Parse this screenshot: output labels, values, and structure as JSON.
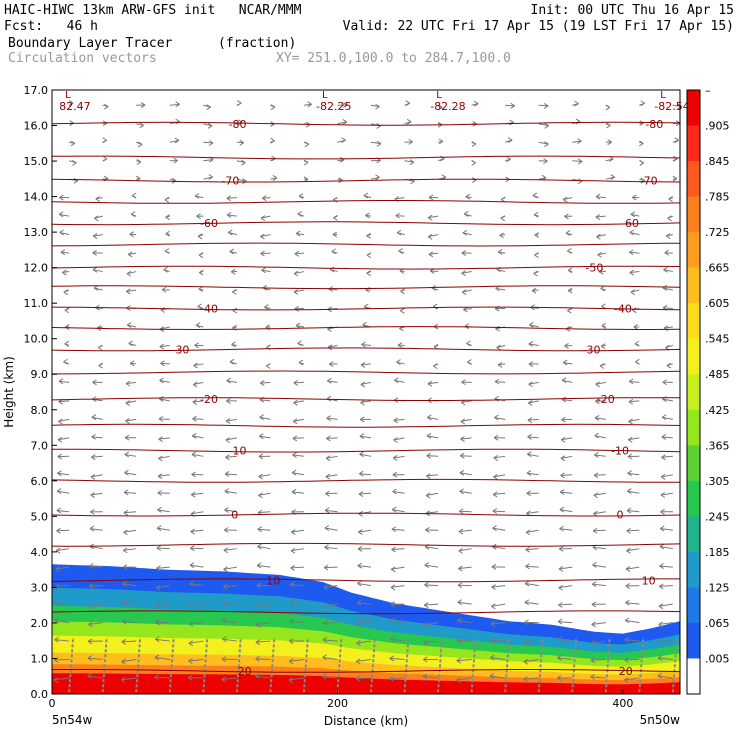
{
  "header": {
    "line1_left": "HAIC-HIWC 13km ARW-GFS init   NCAR/MMM",
    "line1_right": "Init: 00 UTC Thu 16 Apr 15",
    "line2_left": "Fcst:   46 h",
    "line2_right": "Valid: 22 UTC Fri 17 Apr 15 (19 LST Fri 17 Apr 15)",
    "field_name": "Boundary Layer Tracer",
    "field_units": "(fraction)",
    "overlay_name": "Circulation vectors",
    "xsec_info": "XY= 251.0,100.0 to 284.7,100.0"
  },
  "chart_data": {
    "type": "cross-section",
    "title": "Boundary Layer Tracer",
    "units": "(fraction)",
    "xlabel": "Distance (km)",
    "ylabel": "Height (km)",
    "xlim": [
      0,
      440
    ],
    "ylim": [
      0,
      17
    ],
    "x_ticks": [
      0,
      200,
      400
    ],
    "x_tick_labels": [
      "0",
      "200",
      "400"
    ],
    "y_ticks": [
      0,
      1,
      2,
      3,
      4,
      5,
      6,
      7,
      8,
      9,
      10,
      11,
      12,
      13,
      14,
      15,
      16,
      17
    ],
    "y_tick_labels": [
      "0.0",
      "1.0",
      "2.0",
      "3.0",
      "4.0",
      "5.0",
      "6.0",
      "7.0",
      "8.0",
      "9.0",
      "10.0",
      "11.0",
      "12.0",
      "13.0",
      "14.0",
      "15.0",
      "16.0",
      "17.0"
    ],
    "x_end_labels": {
      "left": "5n54w",
      "right": "5n50w"
    },
    "colorbar": {
      "labels": [
        "–",
        ".905",
        ".845",
        ".785",
        ".725",
        ".665",
        ".605",
        ".545",
        ".485",
        ".425",
        ".365",
        ".305",
        ".245",
        ".185",
        ".125",
        ".065",
        ".005"
      ],
      "colors": [
        "#ee0000",
        "#ff2a1a",
        "#ff5a1e",
        "#ff7e1e",
        "#ff9e1e",
        "#ffbe1e",
        "#ffdc1e",
        "#f4f01e",
        "#c8f01e",
        "#96e61e",
        "#5ad232",
        "#28c850",
        "#1eb48c",
        "#1e9bc8",
        "#1e7ae6",
        "#1e5af0",
        "#ffffff"
      ]
    },
    "tracer_profile": {
      "x": [
        0,
        40,
        80,
        120,
        160,
        190,
        210,
        240,
        280,
        320,
        350,
        380,
        400,
        420,
        440
      ],
      "top_km": [
        3.65,
        3.6,
        3.5,
        3.45,
        3.35,
        3.15,
        2.85,
        2.55,
        2.3,
        2.05,
        1.95,
        1.75,
        1.7,
        1.85,
        2.05
      ],
      "layers": [
        {
          "frac": 0.0,
          "color": "#1e5af0"
        },
        {
          "frac": 0.18,
          "color": "#1e9bc8"
        },
        {
          "frac": 0.32,
          "color": "#28c850"
        },
        {
          "frac": 0.44,
          "color": "#96e61e"
        },
        {
          "frac": 0.55,
          "color": "#f4f01e"
        },
        {
          "frac": 0.68,
          "color": "#ffbe1e"
        },
        {
          "frac": 0.77,
          "color": "#ff7e1e"
        },
        {
          "frac": 0.84,
          "color": "#ee0000"
        }
      ]
    },
    "isotherms": [
      {
        "y": 16.05,
        "label": "-80",
        "label_x": [
          130,
          422
        ]
      },
      {
        "y": 15.1
      },
      {
        "y": 14.45,
        "label": "-70",
        "label_x": [
          125,
          418
        ]
      },
      {
        "y": 13.85
      },
      {
        "y": 13.25,
        "label": "-60",
        "label_x": [
          110,
          405
        ]
      },
      {
        "y": 12.65
      },
      {
        "y": 12.0,
        "label": "-50",
        "label_x": [
          380
        ]
      },
      {
        "y": 11.45
      },
      {
        "y": 10.85,
        "label": "-40",
        "label_x": [
          110,
          400
        ]
      },
      {
        "y": 10.3
      },
      {
        "y": 9.7,
        "label": "-30",
        "label_x": [
          90,
          378
        ]
      },
      {
        "y": 9.05
      },
      {
        "y": 8.3,
        "label": "-20",
        "label_x": [
          110,
          388
        ]
      },
      {
        "y": 7.55
      },
      {
        "y": 6.85,
        "label": "-10",
        "label_x": [
          130,
          398
        ]
      },
      {
        "y": 6.0
      },
      {
        "y": 5.05,
        "label": "0",
        "label_x": [
          128,
          398
        ]
      },
      {
        "y": 4.2
      },
      {
        "y": 3.2,
        "label": "10",
        "label_x": [
          155,
          418
        ]
      },
      {
        "y": 2.3
      },
      {
        "y": 0.65,
        "label": "20",
        "label_x": [
          135,
          402
        ]
      }
    ],
    "pressure_minima": [
      {
        "x": 5,
        "value": "82.47"
      },
      {
        "x": 185,
        "value": "-82.25"
      },
      {
        "x": 265,
        "value": "-82.28"
      },
      {
        "x": 422,
        "value": "-82.54"
      }
    ]
  }
}
